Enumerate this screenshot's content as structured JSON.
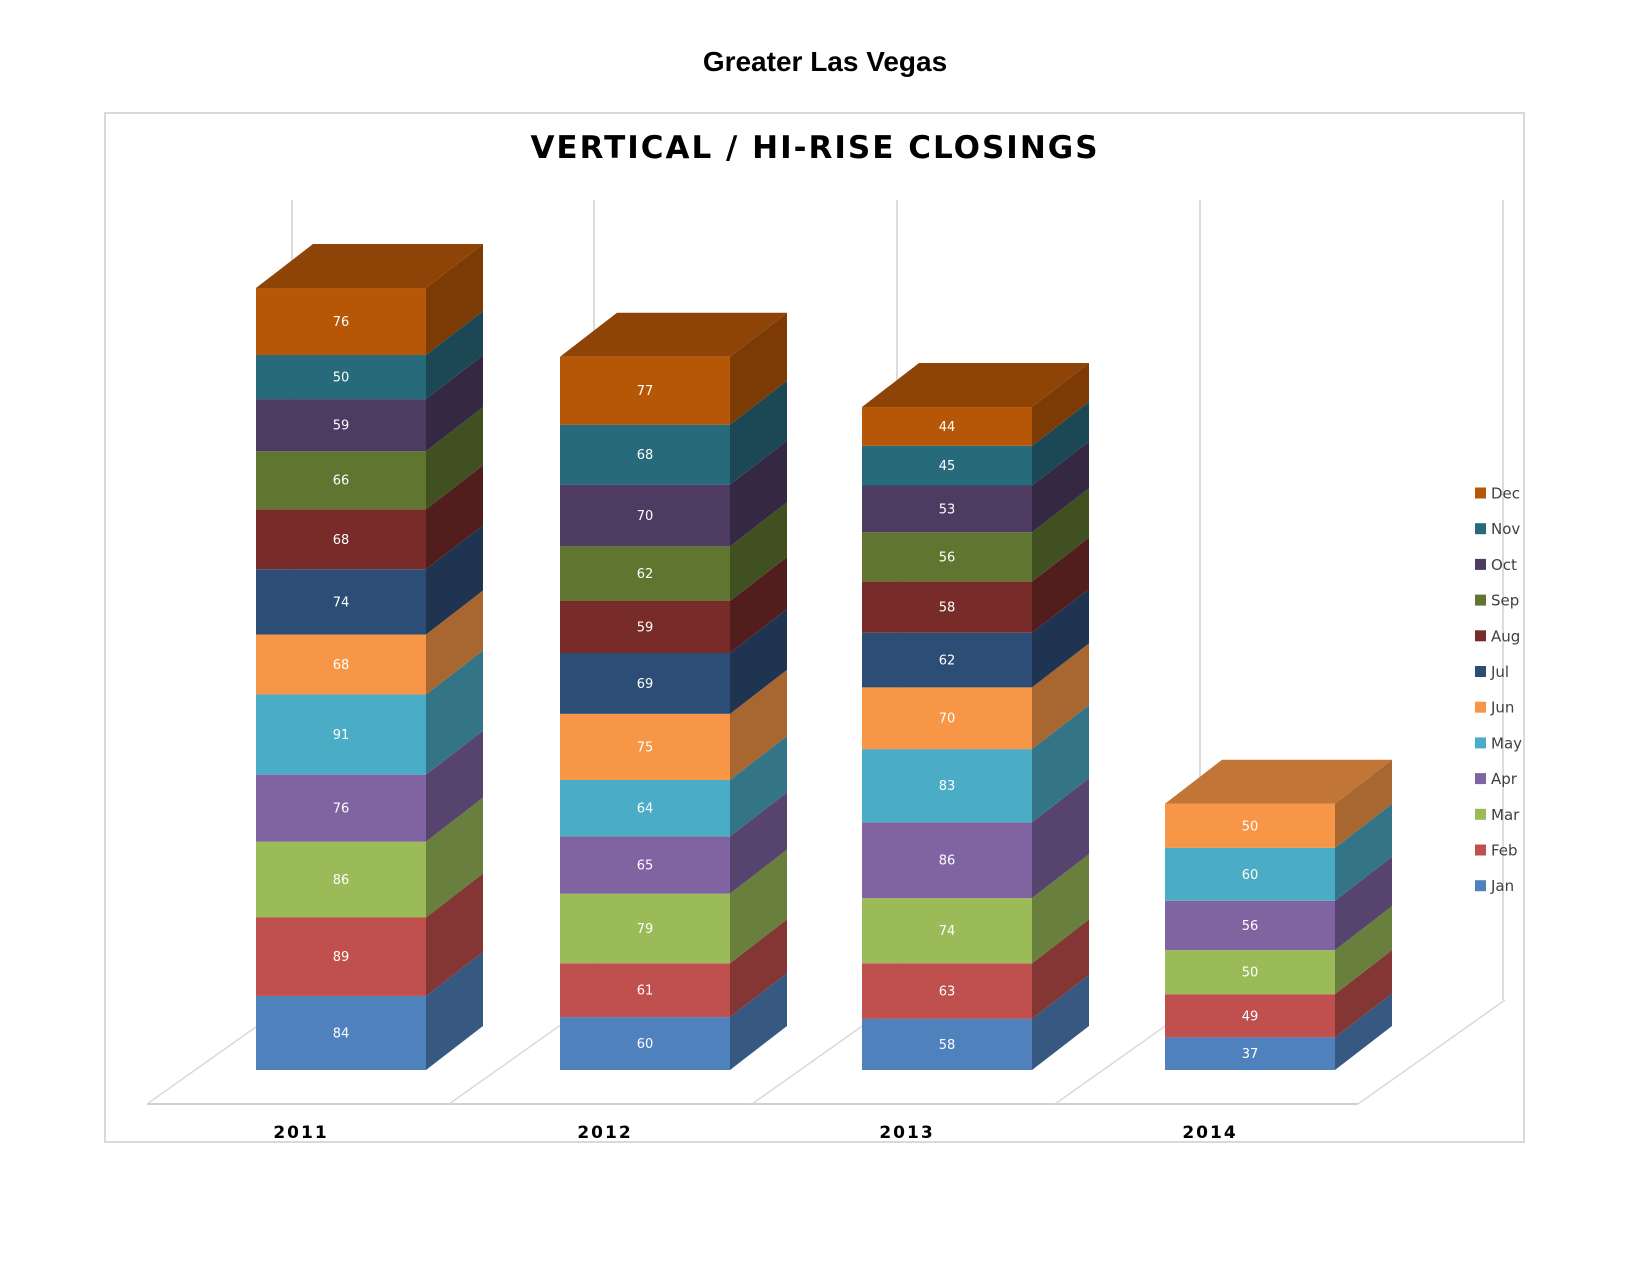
{
  "page": {
    "title": "Greater Las Vegas"
  },
  "chart_data": {
    "type": "bar",
    "stacked": true,
    "three_d": true,
    "title": "VERTICAL / HI-RISE CLOSINGS",
    "xlabel": "",
    "ylabel": "",
    "categories": [
      "2011",
      "2012",
      "2013",
      "2014"
    ],
    "legend_position": "right",
    "series": [
      {
        "name": "Jan",
        "color": "#4f81bd",
        "values": [
          84,
          60,
          58,
          37
        ]
      },
      {
        "name": "Feb",
        "color": "#c0504d",
        "values": [
          89,
          61,
          63,
          49
        ]
      },
      {
        "name": "Mar",
        "color": "#9bbb59",
        "values": [
          86,
          79,
          74,
          50
        ]
      },
      {
        "name": "Apr",
        "color": "#8064a2",
        "values": [
          76,
          65,
          86,
          56
        ]
      },
      {
        "name": "May",
        "color": "#4bacc6",
        "values": [
          91,
          64,
          83,
          60
        ]
      },
      {
        "name": "Jun",
        "color": "#f79646",
        "values": [
          68,
          75,
          70,
          50
        ]
      },
      {
        "name": "Jul",
        "color": "#2c4d75",
        "values": [
          74,
          69,
          62,
          null
        ]
      },
      {
        "name": "Aug",
        "color": "#772c2a",
        "values": [
          68,
          59,
          58,
          null
        ]
      },
      {
        "name": "Sep",
        "color": "#5f7530",
        "values": [
          66,
          62,
          56,
          null
        ]
      },
      {
        "name": "Oct",
        "color": "#4d3b62",
        "values": [
          59,
          70,
          53,
          null
        ]
      },
      {
        "name": "Nov",
        "color": "#276a7c",
        "values": [
          50,
          68,
          45,
          null
        ]
      },
      {
        "name": "Dec",
        "color": "#b65708",
        "values": [
          76,
          77,
          44,
          null
        ]
      }
    ],
    "grid": true
  }
}
